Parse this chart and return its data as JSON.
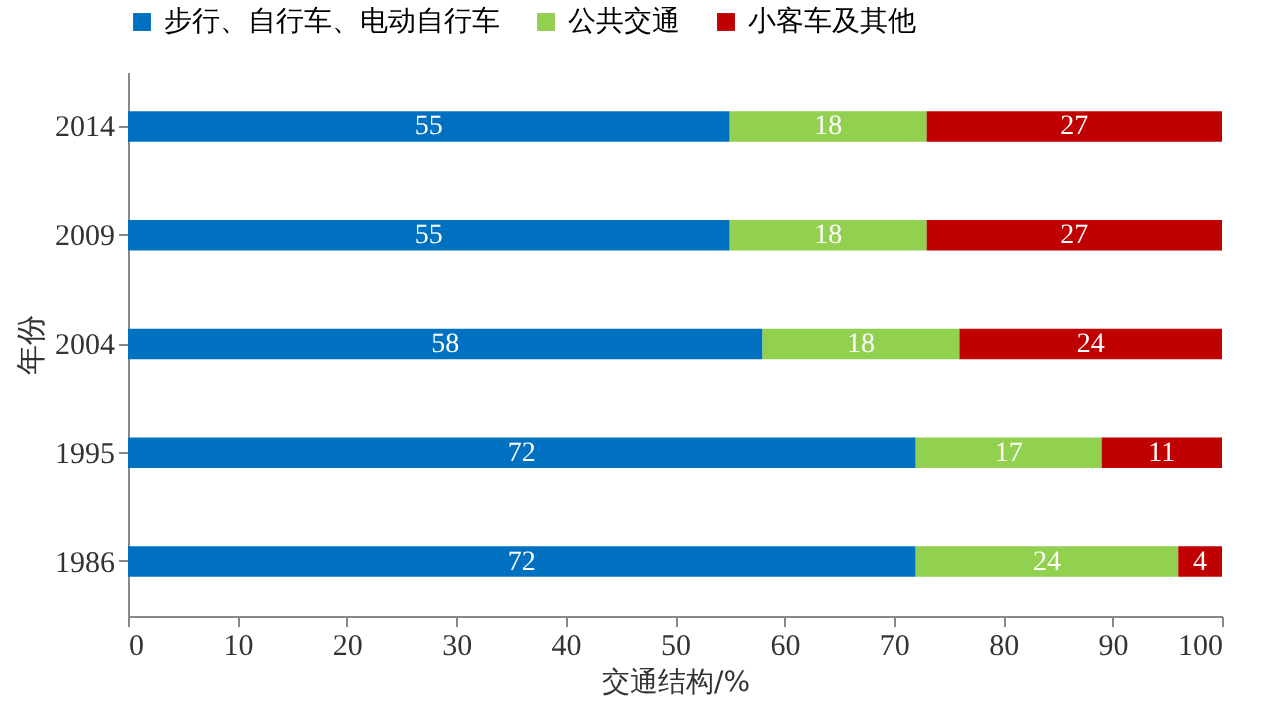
{
  "chart_data": {
    "type": "bar",
    "orientation": "horizontal",
    "stacked": true,
    "categories": [
      "2014",
      "2009",
      "2004",
      "1995",
      "1986"
    ],
    "series": [
      {
        "name": "步行、自行车、电动自行车",
        "color": "#0070c0",
        "values": [
          55,
          55,
          58,
          72,
          72
        ]
      },
      {
        "name": "公共交通",
        "color": "#92d050",
        "values": [
          18,
          18,
          18,
          17,
          24
        ]
      },
      {
        "name": "小客车及其他",
        "color": "#c00000",
        "values": [
          27,
          27,
          24,
          11,
          4
        ]
      }
    ],
    "xlabel": "交通结构/%",
    "ylabel": "年份",
    "xlim": [
      0,
      100
    ],
    "xticks": [
      0,
      10,
      20,
      30,
      40,
      50,
      60,
      70,
      80,
      90,
      100
    ],
    "data_labels": true,
    "legend": "top",
    "grid": false
  }
}
